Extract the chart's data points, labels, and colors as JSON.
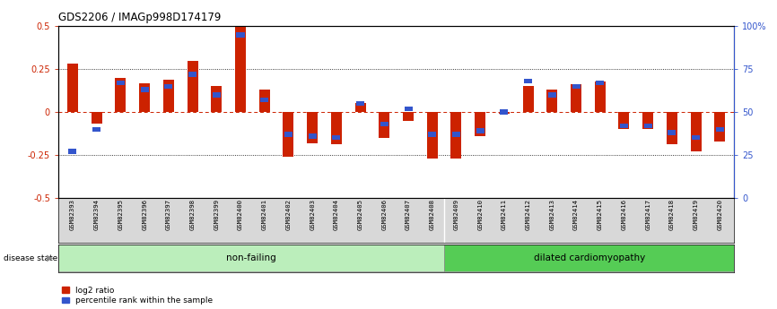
{
  "title": "GDS2206 / IMAGp998D174179",
  "samples": [
    "GSM82393",
    "GSM82394",
    "GSM82395",
    "GSM82396",
    "GSM82397",
    "GSM82398",
    "GSM82399",
    "GSM82400",
    "GSM82401",
    "GSM82402",
    "GSM82403",
    "GSM82404",
    "GSM82405",
    "GSM82406",
    "GSM82407",
    "GSM82408",
    "GSM82409",
    "GSM82410",
    "GSM82411",
    "GSM82412",
    "GSM82413",
    "GSM82414",
    "GSM82415",
    "GSM82416",
    "GSM82417",
    "GSM82418",
    "GSM82419",
    "GSM82420"
  ],
  "log2_ratio": [
    0.28,
    -0.07,
    0.2,
    0.17,
    0.19,
    0.3,
    0.15,
    0.5,
    0.13,
    -0.26,
    -0.18,
    -0.19,
    0.05,
    -0.15,
    -0.05,
    -0.27,
    -0.27,
    -0.14,
    -0.01,
    0.15,
    0.13,
    0.16,
    0.18,
    -0.1,
    -0.1,
    -0.19,
    -0.23,
    -0.17
  ],
  "percentile": [
    0.27,
    0.4,
    0.67,
    0.63,
    0.65,
    0.72,
    0.6,
    0.95,
    0.57,
    0.37,
    0.36,
    0.35,
    0.55,
    0.43,
    0.52,
    0.37,
    0.37,
    0.39,
    0.5,
    0.68,
    0.6,
    0.65,
    0.67,
    0.42,
    0.42,
    0.38,
    0.35,
    0.4
  ],
  "non_failing_count": 16,
  "log2_color": "#cc2200",
  "percentile_color": "#3355cc",
  "ylim_left": [
    -0.5,
    0.5
  ],
  "yticks_left": [
    -0.5,
    -0.25,
    0.0,
    0.25,
    0.5
  ],
  "ytick_labels_left": [
    "-0.5",
    "-0.25",
    "0",
    "0.25",
    "0.5"
  ],
  "ylim_right": [
    0.0,
    1.0
  ],
  "yticks_right": [
    0.0,
    0.25,
    0.5,
    0.75,
    1.0
  ],
  "ytick_labels_right": [
    "0",
    "25",
    "50",
    "75",
    "100%"
  ],
  "hline_dotted_vals": [
    -0.25,
    0.25
  ],
  "hline_dashed_val": 0.0,
  "group_labels": [
    "non-failing",
    "dilated cardiomyopathy"
  ],
  "group_colors": [
    "#bbeebb",
    "#55cc55"
  ],
  "legend_log2": "log2 ratio",
  "legend_pct": "percentile rank within the sample",
  "disease_state_label": "disease state"
}
